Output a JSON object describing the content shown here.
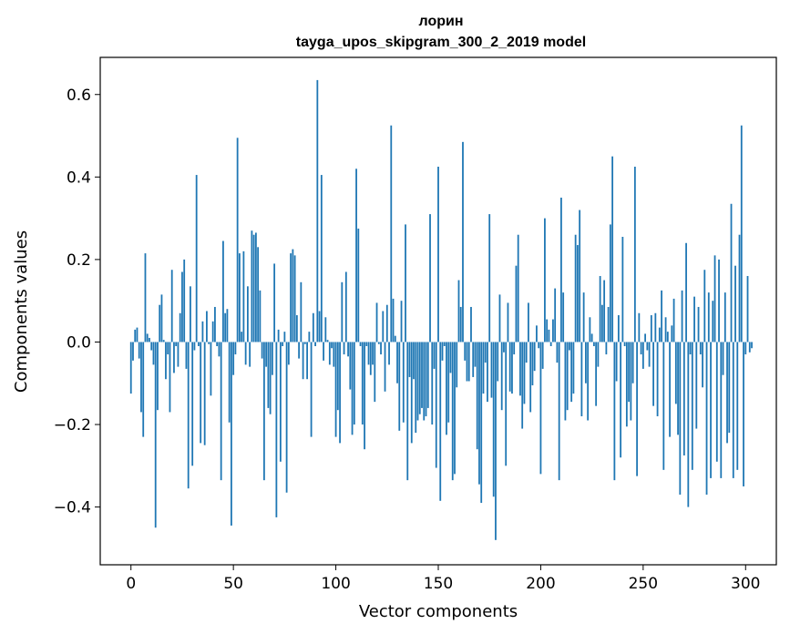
{
  "chart_data": {
    "type": "bar",
    "title_line1": "лорин",
    "title_line2": "tayga_upos_skipgram_300_2_2019 model",
    "xlabel": "Vector components",
    "ylabel": "Components values",
    "xlim": [
      -15,
      315
    ],
    "ylim": [
      -0.54,
      0.69
    ],
    "xticks": [
      0,
      50,
      100,
      150,
      200,
      250,
      300
    ],
    "yticks": [
      -0.4,
      -0.2,
      0.0,
      0.2,
      0.4,
      0.6
    ],
    "ytick_labels": [
      "−0.4",
      "−0.2",
      "0.0",
      "0.2",
      "0.4",
      "0.6"
    ],
    "xtick_labels": [
      "0",
      "50",
      "100",
      "150",
      "200",
      "250",
      "300"
    ],
    "grid": false,
    "bar_color": "#1f77b4",
    "values": [
      -0.125,
      -0.045,
      0.03,
      0.035,
      -0.04,
      -0.17,
      -0.23,
      0.215,
      0.02,
      0.01,
      -0.02,
      -0.055,
      -0.45,
      -0.165,
      0.09,
      0.115,
      0.005,
      -0.09,
      -0.03,
      -0.17,
      0.175,
      -0.075,
      -0.01,
      -0.06,
      0.07,
      0.17,
      0.2,
      -0.065,
      -0.355,
      0.135,
      -0.3,
      -0.02,
      0.405,
      -0.01,
      -0.245,
      0.05,
      -0.25,
      0.075,
      -0.005,
      -0.13,
      0.05,
      0.085,
      -0.01,
      -0.035,
      -0.335,
      0.245,
      0.07,
      0.08,
      -0.195,
      -0.445,
      -0.08,
      -0.03,
      0.495,
      0.215,
      0.025,
      0.22,
      -0.055,
      0.135,
      -0.06,
      0.27,
      0.26,
      0.265,
      0.23,
      0.125,
      -0.04,
      -0.335,
      -0.06,
      -0.16,
      -0.175,
      -0.08,
      0.19,
      -0.425,
      0.03,
      -0.29,
      -0.01,
      0.025,
      -0.365,
      -0.055,
      0.215,
      0.225,
      0.21,
      0.065,
      -0.04,
      0.145,
      -0.09,
      -0.005,
      -0.09,
      0.025,
      -0.23,
      0.07,
      -0.01,
      0.635,
      0.075,
      0.405,
      -0.045,
      0.06,
      0.005,
      -0.055,
      -0.015,
      -0.06,
      -0.23,
      -0.165,
      -0.245,
      0.145,
      -0.03,
      0.17,
      -0.035,
      -0.115,
      -0.225,
      -0.2,
      0.42,
      0.275,
      -0.01,
      -0.2,
      -0.26,
      -0.01,
      -0.055,
      -0.08,
      -0.055,
      -0.145,
      0.095,
      -0.005,
      -0.03,
      0.075,
      -0.12,
      0.09,
      -0.055,
      0.525,
      0.105,
      0.015,
      -0.1,
      -0.215,
      0.1,
      -0.195,
      0.285,
      -0.335,
      -0.085,
      -0.245,
      -0.09,
      -0.22,
      -0.19,
      -0.175,
      -0.16,
      -0.19,
      -0.18,
      -0.16,
      0.31,
      -0.2,
      -0.065,
      -0.305,
      0.425,
      -0.385,
      -0.045,
      -0.01,
      -0.225,
      -0.195,
      -0.075,
      -0.335,
      -0.32,
      -0.11,
      0.15,
      0.085,
      0.485,
      -0.045,
      -0.095,
      -0.095,
      0.085,
      -0.085,
      -0.06,
      -0.26,
      -0.345,
      -0.39,
      -0.125,
      -0.05,
      -0.145,
      0.31,
      -0.135,
      -0.375,
      -0.48,
      -0.095,
      0.115,
      -0.165,
      -0.025,
      -0.3,
      0.095,
      -0.12,
      -0.125,
      -0.03,
      0.185,
      0.26,
      -0.13,
      -0.21,
      -0.15,
      -0.05,
      0.095,
      -0.17,
      -0.105,
      -0.07,
      0.04,
      -0.015,
      -0.32,
      -0.065,
      0.3,
      0.055,
      0.03,
      -0.01,
      0.055,
      0.13,
      -0.05,
      -0.335,
      0.35,
      0.12,
      -0.19,
      -0.165,
      -0.02,
      -0.145,
      -0.125,
      0.26,
      0.235,
      0.32,
      -0.18,
      0.12,
      -0.1,
      -0.19,
      0.06,
      0.02,
      -0.01,
      -0.155,
      -0.06,
      0.16,
      0.09,
      0.15,
      -0.03,
      0.085,
      0.285,
      0.45,
      -0.335,
      -0.095,
      0.065,
      -0.28,
      0.255,
      -0.01,
      -0.205,
      -0.145,
      -0.19,
      -0.1,
      0.425,
      -0.325,
      0.07,
      -0.03,
      -0.065,
      0.02,
      -0.02,
      -0.06,
      0.065,
      -0.155,
      0.07,
      -0.18,
      0.035,
      0.125,
      -0.31,
      0.06,
      0.025,
      -0.23,
      0.04,
      0.105,
      -0.15,
      -0.225,
      -0.37,
      0.125,
      -0.275,
      0.24,
      -0.4,
      -0.03,
      -0.31,
      0.11,
      -0.21,
      0.085,
      -0.03,
      -0.11,
      0.175,
      -0.37,
      0.12,
      -0.33,
      0.1,
      0.21,
      -0.29,
      0.2,
      -0.33,
      -0.08,
      0.12,
      -0.245,
      -0.22,
      0.335,
      -0.33,
      0.185,
      -0.31,
      0.26,
      0.525,
      -0.35,
      -0.03,
      0.16,
      -0.025,
      -0.015
    ]
  }
}
